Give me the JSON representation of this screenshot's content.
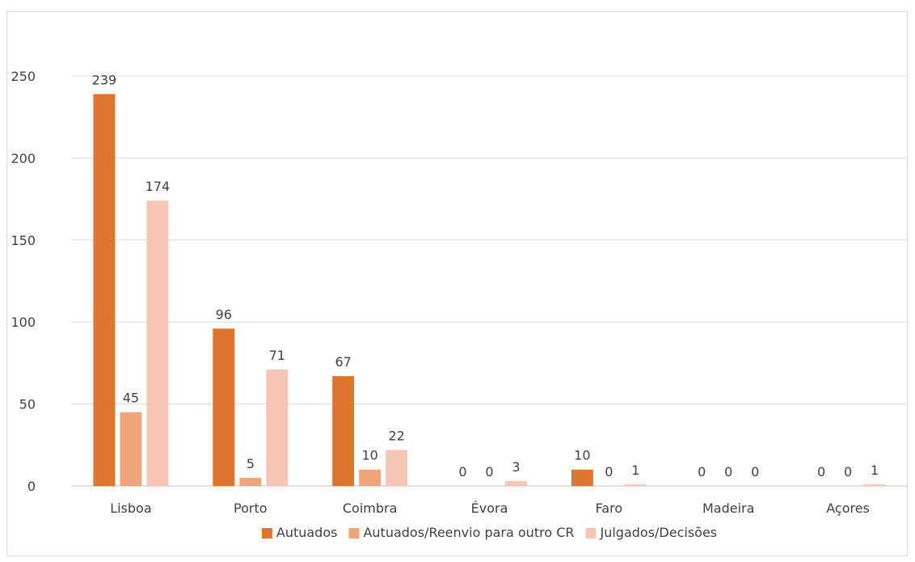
{
  "chart_data": {
    "type": "bar",
    "title": "",
    "xlabel": "",
    "ylabel": "",
    "categories": [
      "Lisboa",
      "Porto",
      "Coimbra",
      "Évora",
      "Faro",
      "Madeira",
      "Açores"
    ],
    "series": [
      {
        "name": "Autuados",
        "values": [
          239,
          96,
          67,
          0,
          10,
          0,
          0
        ],
        "color": "#e07530"
      },
      {
        "name": "Autuados/Reenvio para outro CR",
        "values": [
          45,
          5,
          10,
          0,
          0,
          0,
          0
        ],
        "color": "#f0a47a"
      },
      {
        "name": "Julgados/Decisões",
        "values": [
          174,
          71,
          22,
          3,
          1,
          0,
          1
        ],
        "color": "#f7c6b4"
      }
    ],
    "ylim": [
      0,
      250
    ],
    "yticks": [
      0,
      50,
      100,
      150,
      200,
      250
    ],
    "grid": true,
    "legend_position": "bottom",
    "data_labels": true
  }
}
